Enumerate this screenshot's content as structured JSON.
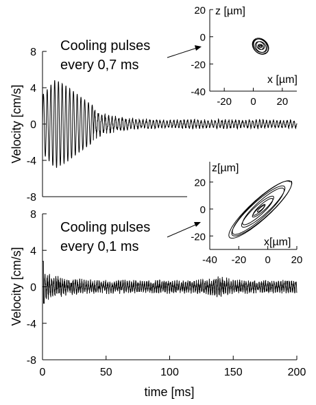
{
  "chart_data": [
    {
      "type": "line",
      "panel": "top",
      "ylabel": "Velocity [cm/s]",
      "xlim": [
        0,
        200
      ],
      "ylim": [
        -8,
        8
      ],
      "yticks": [
        -8,
        -4,
        0,
        4,
        8
      ],
      "annotation": [
        "Cooling pulses",
        "every 0,7 ms"
      ],
      "series": [
        {
          "x": [
            0,
            10,
            20,
            30,
            40,
            50,
            60,
            70,
            80,
            90,
            100,
            110,
            120,
            130,
            140,
            150,
            160,
            170,
            180,
            190,
            200
          ],
          "y_envelope": [
            3.2,
            4.9,
            4.1,
            3.0,
            2.0,
            1.3,
            0.9,
            0.7,
            0.6,
            0.6,
            0.5,
            0.6,
            0.6,
            0.5,
            0.6,
            0.6,
            0.5,
            0.6,
            0.5,
            0.5,
            0.5
          ]
        }
      ],
      "inset": {
        "type": "scatter",
        "xlabel": "x [µm]",
        "ylabel": "z [µm]",
        "xlim": [
          -30,
          30
        ],
        "ylim": [
          -40,
          20
        ],
        "xticks": [
          -20,
          0,
          20
        ],
        "yticks": [
          -40,
          -20,
          0,
          20
        ],
        "trajectory": {
          "center": [
            5,
            -7
          ],
          "extent_x": [
            0,
            12
          ],
          "extent_z": [
            -14,
            -1
          ]
        }
      }
    },
    {
      "type": "line",
      "panel": "bottom",
      "xlabel": "time [ms]",
      "ylabel": "Velocity [cm/s]",
      "xlim": [
        0,
        200
      ],
      "ylim": [
        -8,
        8
      ],
      "xticks": [
        0,
        50,
        100,
        150,
        200
      ],
      "yticks": [
        -8,
        -4,
        0,
        4,
        8
      ],
      "annotation": [
        "Cooling pulses",
        "every 0,1 ms"
      ],
      "series": [
        {
          "x": [
            0,
            10,
            20,
            30,
            40,
            50,
            60,
            70,
            80,
            90,
            100,
            110,
            120,
            130,
            140,
            150,
            160,
            170,
            180,
            190,
            200
          ],
          "y_envelope": [
            1.7,
            1.3,
            1.0,
            0.9,
            0.8,
            0.8,
            0.8,
            0.8,
            0.7,
            0.8,
            0.8,
            0.8,
            0.8,
            0.9,
            1.3,
            0.8,
            0.8,
            0.8,
            0.8,
            0.8,
            0.8
          ]
        }
      ],
      "inset": {
        "type": "scatter",
        "xlabel": "x[µm]",
        "ylabel": "z[µm]",
        "xlim": [
          -40,
          20
        ],
        "ylim": [
          -30,
          30
        ],
        "xticks": [
          -40,
          -20,
          0,
          20
        ],
        "yticks": [
          -20,
          0,
          20
        ],
        "trajectory": {
          "center": [
            -5,
            0
          ],
          "extent_x": [
            -30,
            20
          ],
          "extent_z": [
            -25,
            25
          ]
        }
      }
    }
  ]
}
